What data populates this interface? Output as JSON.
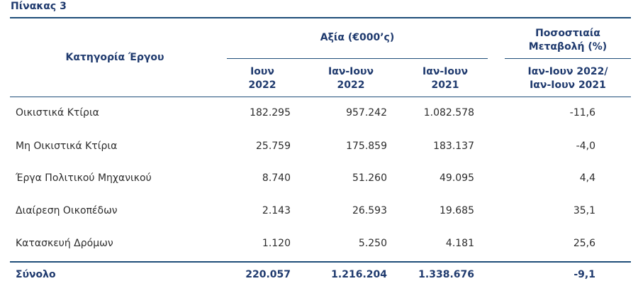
{
  "table": {
    "title": "Πίνακας 3",
    "header": {
      "category": "Κατηγορία Έργου",
      "value_group": "Αξία (€000’ς)",
      "change_group": [
        "Ποσοστιαία",
        "Μεταβολή (%)"
      ],
      "columns": [
        [
          "Ιουν",
          "2022"
        ],
        [
          "Ιαν-Ιουν",
          "2022"
        ],
        [
          "Ιαν-Ιουν",
          "2021"
        ],
        [
          "Ιαν-Ιουν 2022/",
          "Ιαν-Ιουν 2021"
        ]
      ]
    },
    "rows": [
      {
        "category": "Οικιστικά Κτίρια",
        "jun_2022": "182.295",
        "jan_jun_2022": "957.242",
        "jan_jun_2021": "1.082.578",
        "change": "-11,6"
      },
      {
        "category": "Μη Οικιστικά Κτίρια",
        "jun_2022": "25.759",
        "jan_jun_2022": "175.859",
        "jan_jun_2021": "183.137",
        "change": "-4,0"
      },
      {
        "category": "Έργα Πολιτικού Μηχανικού",
        "jun_2022": "8.740",
        "jan_jun_2022": "51.260",
        "jan_jun_2021": "49.095",
        "change": "4,4"
      },
      {
        "category": "Διαίρεση Οικοπέδων",
        "jun_2022": "2.143",
        "jan_jun_2022": "26.593",
        "jan_jun_2021": "19.685",
        "change": "35,1"
      },
      {
        "category": "Κατασκευή Δρόμων",
        "jun_2022": "1.120",
        "jan_jun_2022": "5.250",
        "jan_jun_2021": "4.181",
        "change": "25,6"
      }
    ],
    "total": {
      "category": "Σύνολο",
      "jun_2022": "220.057",
      "jan_jun_2022": "1.216.204",
      "jan_jun_2021": "1.338.676",
      "change": "-9,1"
    }
  }
}
